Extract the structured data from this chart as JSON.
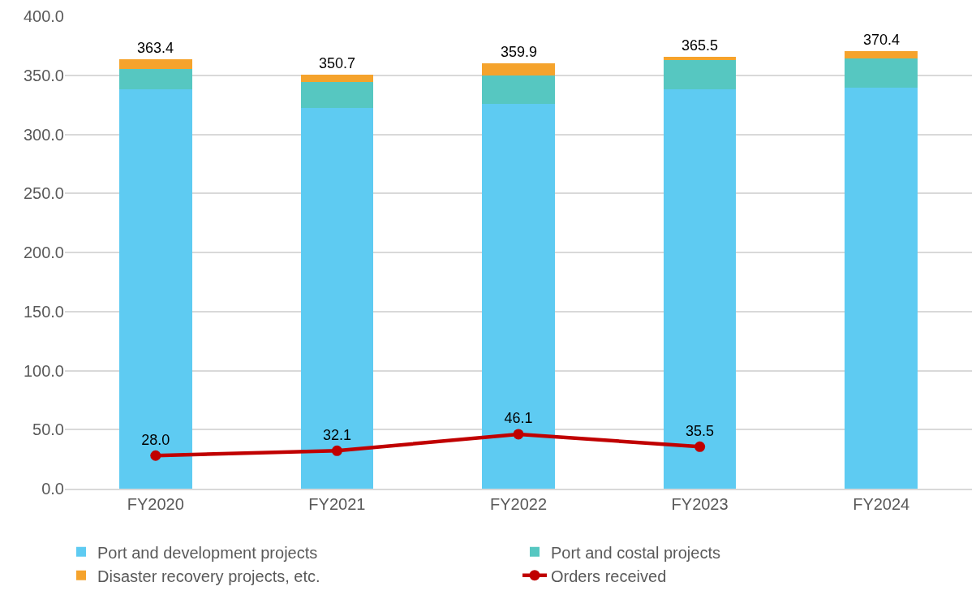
{
  "chart_data": {
    "type": "bar",
    "stacked": true,
    "categories": [
      "FY2020",
      "FY2021",
      "FY2022",
      "FY2023",
      "FY2024"
    ],
    "series": [
      {
        "name": "Port and development projects",
        "color": "#5ecbf2",
        "values": [
          338,
          322,
          325.5,
          338,
          339.5
        ]
      },
      {
        "name": "Port and costal projects",
        "color": "#56c7c1",
        "values": [
          17.5,
          22,
          24,
          25,
          24.5
        ]
      },
      {
        "name": "Disaster recovery projects, etc.",
        "color": "#f5a32c",
        "values": [
          7.9,
          6.7,
          10.4,
          2.5,
          6.4
        ]
      },
      {
        "name": "Orders received",
        "type": "line",
        "color": "#c00000",
        "marker": "circle",
        "line_style": "solid",
        "values": [
          28.0,
          32.1,
          46.1,
          35.5,
          null
        ],
        "value_labels": [
          "28.0",
          "32.1",
          "46.1",
          "35.5",
          null
        ]
      }
    ],
    "totals": [
      "363.4",
      "350.7",
      "359.9",
      "365.5",
      "370.4"
    ],
    "ylim": [
      0,
      400
    ],
    "yticks": [
      {
        "value": 0,
        "label": "0.0"
      },
      {
        "value": 50,
        "label": "50.0"
      },
      {
        "value": 100,
        "label": "100.0"
      },
      {
        "value": 150,
        "label": "150.0"
      },
      {
        "value": 200,
        "label": "200.0"
      },
      {
        "value": 250,
        "label": "250.0"
      },
      {
        "value": 300,
        "label": "300.0"
      },
      {
        "value": 350,
        "label": "350.0"
      },
      {
        "value": 400,
        "label": "400.0"
      }
    ],
    "grid": "y",
    "legend": "bottom"
  }
}
